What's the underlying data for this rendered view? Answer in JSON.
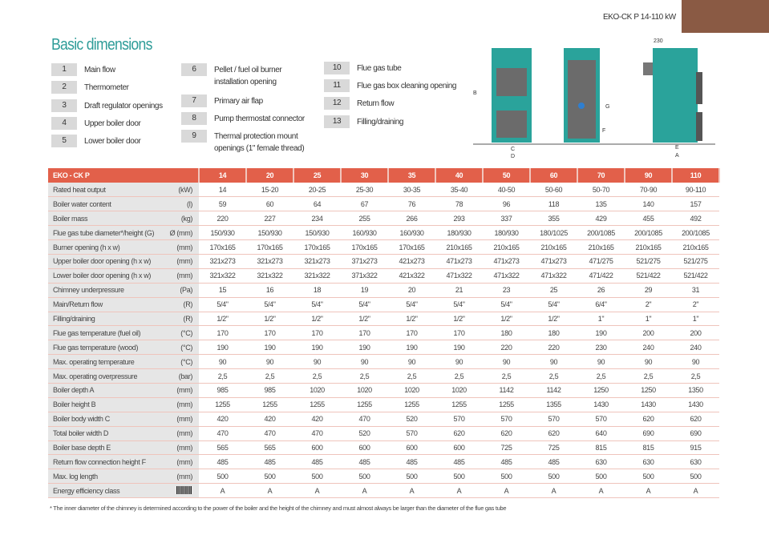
{
  "model": "EKO-CK P 14-110 kW",
  "title": "Basic dimensions",
  "legend": [
    {
      "n": "1",
      "t": "Main flow"
    },
    {
      "n": "2",
      "t": "Thermometer"
    },
    {
      "n": "3",
      "t": "Draft regulator openings"
    },
    {
      "n": "4",
      "t": "Upper boiler door"
    },
    {
      "n": "5",
      "t": "Lower boiler door"
    },
    {
      "n": "6",
      "t": "Pellet / fuel oil burner installation opening"
    },
    {
      "n": "7",
      "t": "Primary air flap"
    },
    {
      "n": "8",
      "t": "Pump thermostat connector"
    },
    {
      "n": "9",
      "t": "Thermal protection mount openings (1\" female thread)"
    },
    {
      "n": "10",
      "t": "Flue gas tube"
    },
    {
      "n": "11",
      "t": "Flue gas box cleaning opening"
    },
    {
      "n": "12",
      "t": "Return flow"
    },
    {
      "n": "13",
      "t": "Filling/draining"
    }
  ],
  "diagram": {
    "dim_230": "230",
    "labels": [
      "B",
      "C",
      "D",
      "G",
      "F",
      "E",
      "A"
    ]
  },
  "table": {
    "header": "EKO - CK P",
    "models": [
      "14",
      "20",
      "25",
      "30",
      "35",
      "40",
      "50",
      "60",
      "70",
      "90",
      "110"
    ],
    "rows": [
      {
        "label": "Rated heat output",
        "unit": "(kW)",
        "values": [
          "14",
          "15-20",
          "20-25",
          "25-30",
          "30-35",
          "35-40",
          "40-50",
          "50-60",
          "50-70",
          "70-90",
          "90-110"
        ]
      },
      {
        "label": "Boiler water content",
        "unit": "(l)",
        "values": [
          "59",
          "60",
          "64",
          "67",
          "76",
          "78",
          "96",
          "118",
          "135",
          "140",
          "157"
        ]
      },
      {
        "label": "Boiler mass",
        "unit": "(kg)",
        "values": [
          "220",
          "227",
          "234",
          "255",
          "266",
          "293",
          "337",
          "355",
          "429",
          "455",
          "492"
        ]
      },
      {
        "label": "Flue gas tube diameter*/height (G)",
        "unit": "Ø (mm)",
        "values": [
          "150/930",
          "150/930",
          "150/930",
          "160/930",
          "160/930",
          "180/930",
          "180/930",
          "180/1025",
          "200/1085",
          "200/1085",
          "200/1085"
        ]
      },
      {
        "label": "Burner opening (h x w)",
        "unit": "(mm)",
        "values": [
          "170x165",
          "170x165",
          "170x165",
          "170x165",
          "170x165",
          "210x165",
          "210x165",
          "210x165",
          "210x165",
          "210x165",
          "210x165"
        ]
      },
      {
        "label": "Upper boiler door opening (h x w)",
        "unit": "(mm)",
        "values": [
          "321x273",
          "321x273",
          "321x273",
          "371x273",
          "421x273",
          "471x273",
          "471x273",
          "471x273",
          "471/275",
          "521/275",
          "521/275"
        ]
      },
      {
        "label": "Lower boiler door opening (h x w)",
        "unit": "(mm)",
        "values": [
          "321x322",
          "321x322",
          "321x322",
          "371x322",
          "421x322",
          "471x322",
          "471x322",
          "471x322",
          "471/422",
          "521/422",
          "521/422"
        ]
      },
      {
        "label": "Chimney underpressure",
        "unit": "(Pa)",
        "values": [
          "15",
          "16",
          "18",
          "19",
          "20",
          "21",
          "23",
          "25",
          "26",
          "29",
          "31"
        ]
      },
      {
        "label": "Main/Return flow",
        "unit": "(R)",
        "values": [
          "5/4\"",
          "5/4\"",
          "5/4\"",
          "5/4\"",
          "5/4\"",
          "5/4\"",
          "5/4\"",
          "5/4\"",
          "6/4\"",
          "2\"",
          "2\""
        ]
      },
      {
        "label": "Filling/draining",
        "unit": "(R)",
        "values": [
          "1/2\"",
          "1/2\"",
          "1/2\"",
          "1/2\"",
          "1/2\"",
          "1/2\"",
          "1/2\"",
          "1/2\"",
          "1\"",
          "1\"",
          "1\""
        ]
      },
      {
        "label": "Flue gas temperature (fuel oil)",
        "unit": "(°C)",
        "values": [
          "170",
          "170",
          "170",
          "170",
          "170",
          "170",
          "180",
          "180",
          "190",
          "200",
          "200"
        ]
      },
      {
        "label": "Flue gas temperature (wood)",
        "unit": "(°C)",
        "values": [
          "190",
          "190",
          "190",
          "190",
          "190",
          "190",
          "220",
          "220",
          "230",
          "240",
          "240"
        ]
      },
      {
        "label": "Max. operating temperature",
        "unit": "(°C)",
        "values": [
          "90",
          "90",
          "90",
          "90",
          "90",
          "90",
          "90",
          "90",
          "90",
          "90",
          "90"
        ]
      },
      {
        "label": "Max. operating overpressure",
        "unit": "(bar)",
        "values": [
          "2,5",
          "2,5",
          "2,5",
          "2,5",
          "2,5",
          "2,5",
          "2,5",
          "2,5",
          "2,5",
          "2,5",
          "2,5"
        ]
      },
      {
        "label": "Boiler depth A",
        "unit": "(mm)",
        "values": [
          "985",
          "985",
          "1020",
          "1020",
          "1020",
          "1020",
          "1142",
          "1142",
          "1250",
          "1250",
          "1350"
        ]
      },
      {
        "label": "Boiler height B",
        "unit": "(mm)",
        "values": [
          "1255",
          "1255",
          "1255",
          "1255",
          "1255",
          "1255",
          "1255",
          "1355",
          "1430",
          "1430",
          "1430"
        ]
      },
      {
        "label": "Boiler body width C",
        "unit": "(mm)",
        "values": [
          "420",
          "420",
          "420",
          "470",
          "520",
          "570",
          "570",
          "570",
          "570",
          "620",
          "620"
        ]
      },
      {
        "label": "Total boiler width D",
        "unit": "(mm)",
        "values": [
          "470",
          "470",
          "470",
          "520",
          "570",
          "620",
          "620",
          "620",
          "640",
          "690",
          "690"
        ]
      },
      {
        "label": "Boiler base depth E",
        "unit": "(mm)",
        "values": [
          "565",
          "565",
          "600",
          "600",
          "600",
          "600",
          "725",
          "725",
          "815",
          "815",
          "915"
        ]
      },
      {
        "label": "Return flow connection height F",
        "unit": "(mm)",
        "values": [
          "485",
          "485",
          "485",
          "485",
          "485",
          "485",
          "485",
          "485",
          "630",
          "630",
          "630"
        ]
      },
      {
        "label": "Max. log length",
        "unit": "(mm)",
        "values": [
          "500",
          "500",
          "500",
          "500",
          "500",
          "500",
          "500",
          "500",
          "500",
          "500",
          "500"
        ]
      },
      {
        "label": "Energy efficiency class",
        "unit": "",
        "values": [
          "A",
          "A",
          "A",
          "A",
          "A",
          "A",
          "A",
          "A",
          "A",
          "A",
          "A"
        ]
      }
    ]
  },
  "footnote": "* The inner diameter of the chimney is determined according to the power of the boiler and the height of the chimney and must almost always be larger than the diameter of the flue gas tube"
}
